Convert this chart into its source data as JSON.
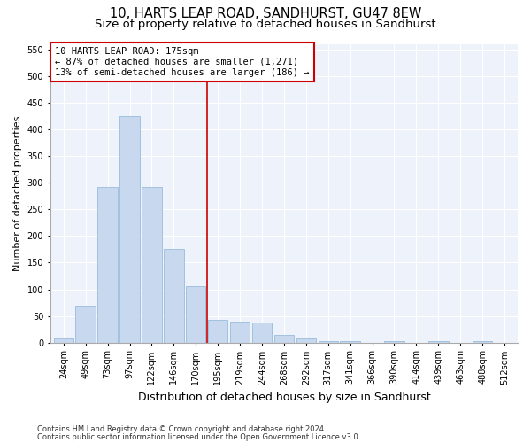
{
  "title1": "10, HARTS LEAP ROAD, SANDHURST, GU47 8EW",
  "title2": "Size of property relative to detached houses in Sandhurst",
  "xlabel": "Distribution of detached houses by size in Sandhurst",
  "ylabel": "Number of detached properties",
  "categories": [
    "24sqm",
    "49sqm",
    "73sqm",
    "97sqm",
    "122sqm",
    "146sqm",
    "170sqm",
    "195sqm",
    "219sqm",
    "244sqm",
    "268sqm",
    "292sqm",
    "317sqm",
    "341sqm",
    "366sqm",
    "390sqm",
    "414sqm",
    "439sqm",
    "463sqm",
    "488sqm",
    "512sqm"
  ],
  "values": [
    7,
    70,
    293,
    425,
    293,
    175,
    106,
    43,
    40,
    38,
    15,
    8,
    3,
    3,
    0,
    2,
    0,
    2,
    0,
    3,
    0
  ],
  "bar_color": "#c8d8ee",
  "bar_edge_color": "#8ab4d8",
  "vline_x_index": 6.5,
  "vline_color": "#cc0000",
  "annotation_line1": "10 HARTS LEAP ROAD: 175sqm",
  "annotation_line2": "← 87% of detached houses are smaller (1,271)",
  "annotation_line3": "13% of semi-detached houses are larger (186) →",
  "annotation_box_color": "#cc0000",
  "ylim": [
    0,
    560
  ],
  "yticks": [
    0,
    50,
    100,
    150,
    200,
    250,
    300,
    350,
    400,
    450,
    500,
    550
  ],
  "footer1": "Contains HM Land Registry data © Crown copyright and database right 2024.",
  "footer2": "Contains public sector information licensed under the Open Government Licence v3.0.",
  "bg_color": "#eef2fb",
  "grid_color": "#ffffff",
  "title1_fontsize": 10.5,
  "title2_fontsize": 9.5,
  "tick_fontsize": 7,
  "ylabel_fontsize": 8,
  "xlabel_fontsize": 9,
  "footer_fontsize": 6,
  "ann_fontsize": 7.5
}
